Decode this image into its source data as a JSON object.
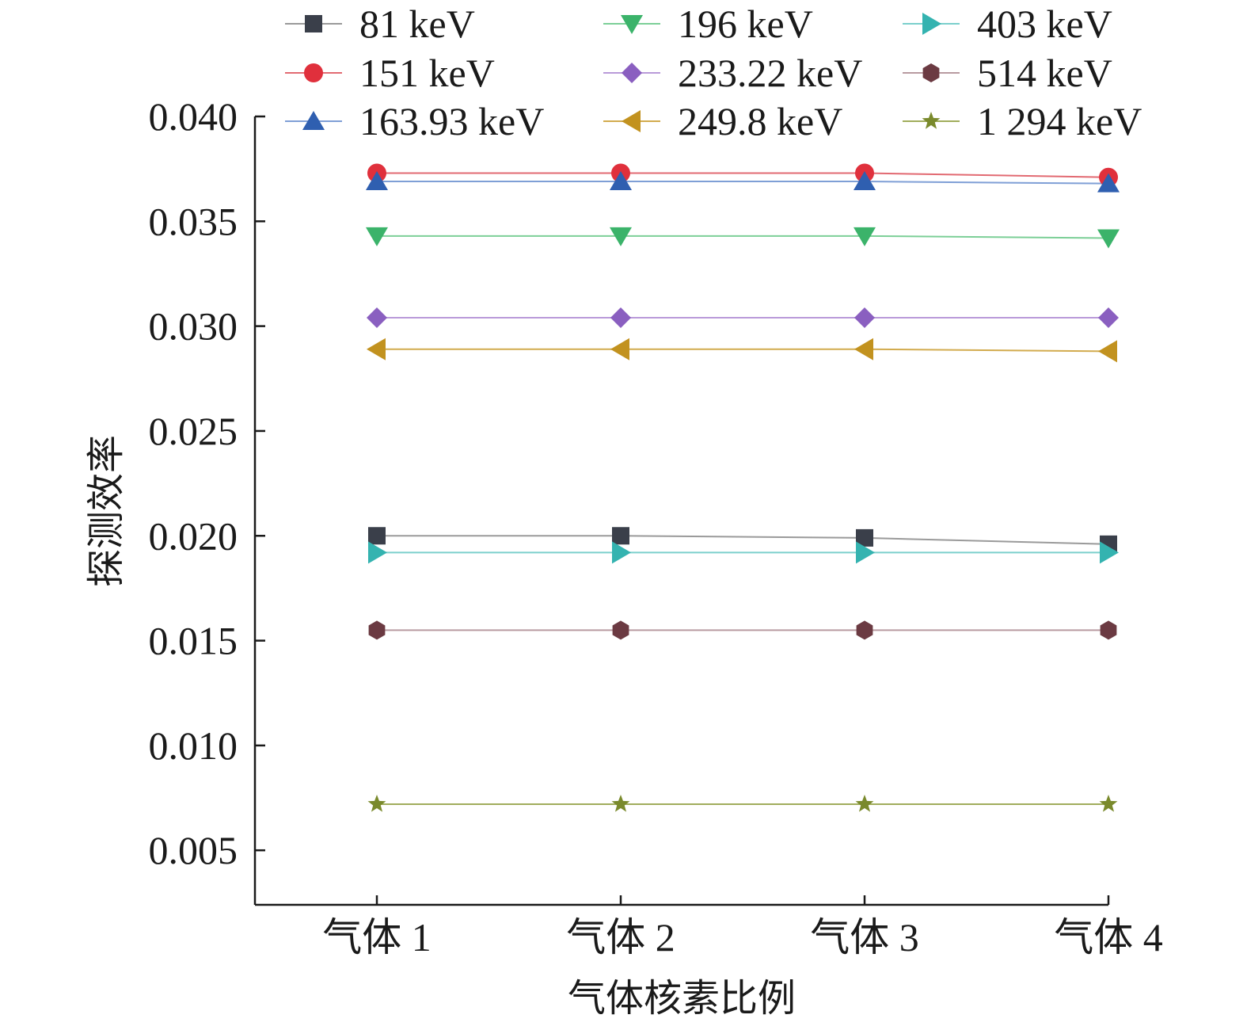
{
  "chart_data": {
    "type": "line",
    "title": "",
    "xlabel": "气体核素比例",
    "ylabel": "探测效率",
    "categories": [
      "气体 1",
      "气体 2",
      "气体 3",
      "气体 4"
    ],
    "ylim": [
      0.0024,
      0.04
    ],
    "yticks": [
      "0.040",
      "0.035",
      "0.030",
      "0.025",
      "0.020",
      "0.015",
      "0.010",
      "0.005"
    ],
    "ytick_values": [
      0.04,
      0.035,
      0.03,
      0.025,
      0.02,
      0.015,
      0.01,
      0.005
    ],
    "grid": false,
    "legend_position": "top",
    "series": [
      {
        "name": "81 keV",
        "marker": "square",
        "color": "#3a3f4a",
        "line_color": "#9a9a9a",
        "values": [
          0.02,
          0.02,
          0.0199,
          0.0196
        ]
      },
      {
        "name": "151 keV",
        "marker": "circle",
        "color": "#e0303c",
        "line_color": "#e26a72",
        "values": [
          0.0373,
          0.0373,
          0.0373,
          0.0371
        ]
      },
      {
        "name": "163.93 keV",
        "marker": "triangle-up",
        "color": "#2f5fb0",
        "line_color": "#7f9fd6",
        "values": [
          0.0369,
          0.0369,
          0.0369,
          0.0368
        ]
      },
      {
        "name": "196 keV",
        "marker": "triangle-down",
        "color": "#3bb36a",
        "line_color": "#7ccf97",
        "values": [
          0.0343,
          0.0343,
          0.0343,
          0.0342
        ]
      },
      {
        "name": "233.22 keV",
        "marker": "diamond",
        "color": "#8a5fc0",
        "line_color": "#b99ad9",
        "values": [
          0.0304,
          0.0304,
          0.0304,
          0.0304
        ]
      },
      {
        "name": "249.8 keV",
        "marker": "triangle-left",
        "color": "#c2921f",
        "line_color": "#d2ab4e",
        "values": [
          0.0289,
          0.0289,
          0.0289,
          0.0288
        ]
      },
      {
        "name": "403 keV",
        "marker": "triangle-right",
        "color": "#34b3b0",
        "line_color": "#7bcfcc",
        "values": [
          0.0192,
          0.0192,
          0.0192,
          0.0192
        ]
      },
      {
        "name": "514 keV",
        "marker": "hexagon",
        "color": "#6b3a42",
        "line_color": "#b89aa0",
        "values": [
          0.0155,
          0.0155,
          0.0155,
          0.0155
        ]
      },
      {
        "name": "1 294 keV",
        "marker": "star",
        "color": "#7a8a2c",
        "line_color": "#a1ad5c",
        "values": [
          0.0072,
          0.0072,
          0.0072,
          0.0072
        ]
      }
    ]
  }
}
